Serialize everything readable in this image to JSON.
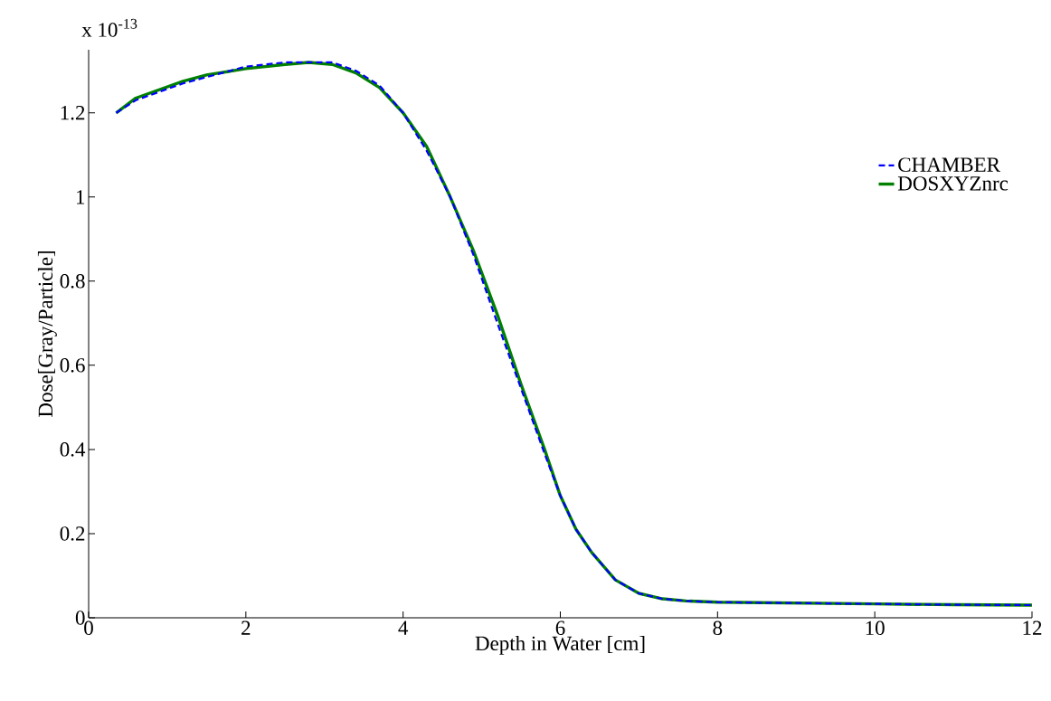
{
  "chart_data": {
    "type": "line",
    "xlabel": "Depth in Water [cm]",
    "ylabel": "Dose[Gray/Particle]",
    "annotations": [
      "x 10$^{-13}$"
    ],
    "x": [
      0.35,
      0.6,
      0.9,
      1.2,
      1.5,
      2.0,
      2.5,
      2.8,
      3.1,
      3.4,
      3.7,
      4.0,
      4.3,
      4.6,
      4.9,
      5.2,
      5.5,
      5.8,
      6.0,
      6.2,
      6.4,
      6.7,
      7.0,
      7.3,
      7.6,
      8.0,
      9.0,
      10.0,
      11.0,
      12.0
    ],
    "series": [
      {
        "name": "CHAMBER",
        "color": "#0000ff",
        "line_style": "dashed",
        "values": [
          1.2,
          1.23,
          1.25,
          1.27,
          1.285,
          1.31,
          1.32,
          1.32,
          1.32,
          1.3,
          1.265,
          1.2,
          1.11,
          1.0,
          0.86,
          0.7,
          0.545,
          0.39,
          0.29,
          0.21,
          0.155,
          0.09,
          0.058,
          0.045,
          0.04,
          0.037,
          0.035,
          0.033,
          0.031,
          0.03
        ]
      },
      {
        "name": "DOSXYZnrc",
        "color": "#008000",
        "line_style": "solid",
        "values": [
          1.2,
          1.235,
          1.255,
          1.275,
          1.29,
          1.305,
          1.315,
          1.32,
          1.315,
          1.295,
          1.26,
          1.2,
          1.12,
          1.0,
          0.87,
          0.72,
          0.555,
          0.4,
          0.29,
          0.21,
          0.155,
          0.09,
          0.058,
          0.045,
          0.04,
          0.037,
          0.035,
          0.033,
          0.031,
          0.03
        ]
      }
    ],
    "xlim": [
      0,
      12
    ],
    "ylim": [
      0,
      1.35
    ],
    "xticks": [
      0,
      2,
      4,
      6,
      8,
      10,
      12
    ],
    "yticks": [
      0,
      0.2,
      0.4,
      0.6,
      0.8,
      1,
      1.2
    ],
    "legend": "right",
    "grid": false
  }
}
